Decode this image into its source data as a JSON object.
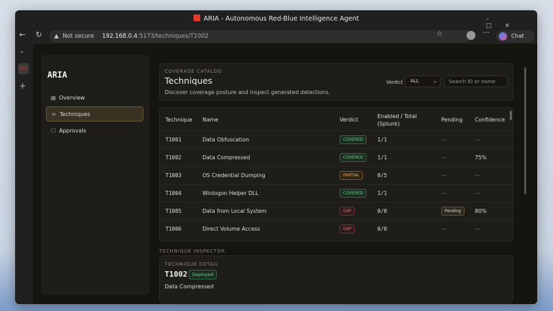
{
  "browser": {
    "window_title": "ARIA - Autonomous Red-Blue Intelligence Agent",
    "security": "Not secure",
    "url_host": "192.168.0.4",
    "url_path": ":5173/techniques/T1002",
    "chat": "Chat"
  },
  "sidebar": {
    "brand": "ARIA",
    "nav": [
      "Overview",
      "Techniques",
      "Approvals"
    ]
  },
  "catalog": {
    "eyebrow": "COVERAGE CATALOG",
    "title": "Techniques",
    "subtitle": "Discover coverage posture and inspect generated detections.",
    "verdict_label": "Verdict",
    "verdict_value": "ALL",
    "search_placeholder": "Search ID or name"
  },
  "table": {
    "columns": [
      "Technique",
      "Name",
      "Verdict",
      "Enabled / Total (Splunk)",
      "Pending",
      "Confidence"
    ],
    "rows": [
      [
        "T1001",
        "Data Obfuscation",
        "COVERED",
        "1/1",
        "—",
        "—"
      ],
      [
        "T1002",
        "Data Compressed",
        "COVERED",
        "1/1",
        "—",
        "75%"
      ],
      [
        "T1003",
        "OS Credential Dumping",
        "PARTIAL",
        "0/5",
        "—",
        "—"
      ],
      [
        "T1004",
        "Winlogon Helper DLL",
        "COVERED",
        "1/1",
        "—",
        "—"
      ],
      [
        "T1005",
        "Data from Local System",
        "GAP",
        "0/0",
        "Pending",
        "80%"
      ],
      [
        "T1006",
        "Direct Volume Access",
        "GAP",
        "0/0",
        "—",
        "—"
      ]
    ]
  },
  "inspector": {
    "section": "TECHNIQUE INSPECTOR",
    "eyebrow": "TECHNIQUE DETAIL",
    "id": "T1002",
    "status": "Deployed",
    "name": "Data Compressed"
  }
}
